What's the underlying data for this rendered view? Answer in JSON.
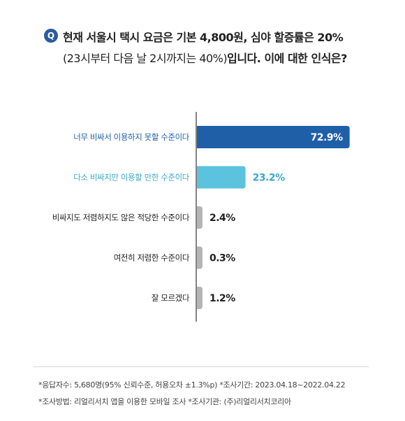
{
  "question": {
    "badge": "Q",
    "line1": "현재 서울시 택시 요금은 기본 4,800원, 심야 할증률은 20%",
    "line2_paren": "(23시부터 다음 날 2시까지는 40%)",
    "line2_rest": "입니다. 이에 대한 인식은?"
  },
  "chart_data": {
    "type": "bar",
    "orientation": "horizontal",
    "categories": [
      "너무 비싸서 이용하지 못할 수준이다",
      "다소 비싸지만 이용할 만한 수준이다",
      "비싸지도 저렴하지도 않은 적당한 수준이다",
      "여전히 저렴한 수준이다",
      "잘 모르겠다"
    ],
    "values": [
      72.9,
      23.2,
      2.4,
      0.3,
      1.2
    ],
    "value_labels": [
      "72.9%",
      "23.2%",
      "2.4%",
      "0.3%",
      "1.2%"
    ],
    "xlim": [
      0,
      100
    ],
    "grid": false,
    "colors": [
      "#1f5fa8",
      "#5bc3dd",
      "#b5b5b5",
      "#b5b5b5",
      "#b5b5b5"
    ],
    "label_colors": [
      "#1f5fa8",
      "#3aaac8",
      "#222222",
      "#222222",
      "#222222"
    ],
    "value_label_colors": [
      "#ffffff",
      "#3aaac8",
      "#222222",
      "#222222",
      "#222222"
    ]
  },
  "footnotes": {
    "line1": "*응답자수: 5,680명(95% 신뢰수준, 허용오차 ±1.3%p)  *조사기간: 2023.04.18~2022.04.22",
    "line2": "*조사방법: 리얼리서치 앱을 이용한 모바일 조사  *조사기관: (주)리얼리서치코리아"
  }
}
